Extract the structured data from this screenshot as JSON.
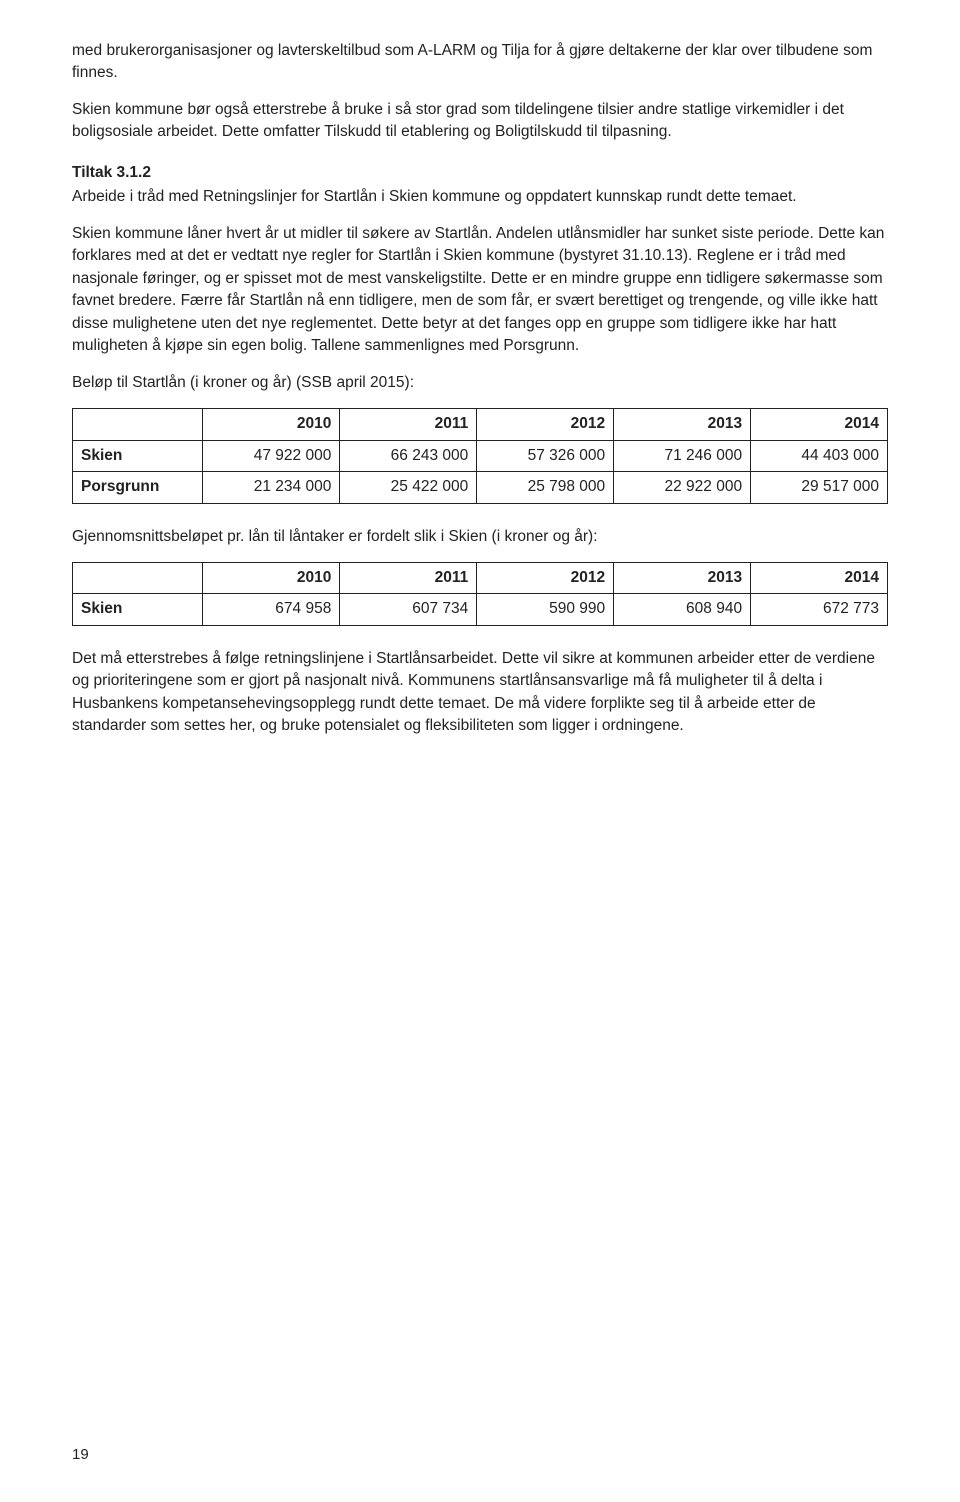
{
  "para1": "med brukerorganisasjoner og lavterskeltilbud som A-LARM og Tilja for å gjøre deltakerne der klar over tilbudene som finnes.",
  "para2": "Skien kommune bør også etterstrebe å bruke i så stor grad som tildelingene tilsier andre statlige virkemidler i det boligsosiale arbeidet. Dette omfatter Tilskudd til etablering og Boligtilskudd til tilpasning.",
  "tiltak_heading": "Tiltak 3.1.2",
  "tiltak_body": "Arbeide i tråd med Retningslinjer for Startlån i Skien kommune og oppdatert kunnskap rundt dette temaet.",
  "para3": "Skien kommune låner hvert år ut midler til søkere av Startlån. Andelen utlånsmidler har sunket siste periode. Dette kan forklares med at det er vedtatt nye regler for Startlån i Skien kommune (bystyret 31.10.13). Reglene er i tråd med nasjonale føringer, og er spisset mot de mest vanskeligstilte. Dette er en mindre gruppe enn tidligere søkermasse som favnet bredere. Færre får Startlån nå enn tidligere, men de som får, er svært berettiget og trengende, og ville ikke hatt disse mulighetene uten det nye reglementet. Dette betyr at det fanges opp en gruppe som tidligere ikke har hatt muligheten å kjøpe sin egen bolig. Tallene sammenlignes med Porsgrunn.",
  "para4": "Beløp til Startlån (i kroner og år) (SSB april 2015):",
  "table1": {
    "years": [
      "2010",
      "2011",
      "2012",
      "2013",
      "2014"
    ],
    "rows": [
      {
        "label": "Skien",
        "cells": [
          "47 922 000",
          "66 243 000",
          "57 326 000",
          "71 246 000",
          "44 403 000"
        ]
      },
      {
        "label": "Porsgrunn",
        "cells": [
          "21 234 000",
          "25 422 000",
          "25 798 000",
          "22 922 000",
          "29 517 000"
        ]
      }
    ]
  },
  "para5": "Gjennomsnittsbeløpet pr. lån til låntaker er fordelt slik i Skien (i kroner og år):",
  "table2": {
    "years": [
      "2010",
      "2011",
      "2012",
      "2013",
      "2014"
    ],
    "rows": [
      {
        "label": "Skien",
        "cells": [
          "674 958",
          "607 734",
          "590 990",
          "608 940",
          "672 773"
        ]
      }
    ]
  },
  "para6": "Det må etterstrebes å følge retningslinjene i Startlånsarbeidet. Dette vil sikre at kommunen arbeider etter de verdiene og prioriteringene som er gjort på nasjonalt nivå. Kommunens startlånsansvarlige må få muligheter til å delta i Husbankens kompetansehevingsopplegg rundt dette temaet. De må videre forplikte seg til å arbeide etter de standarder som settes her, og bruke potensialet og fleksibiliteten som ligger i ordningene.",
  "page_number": "19"
}
